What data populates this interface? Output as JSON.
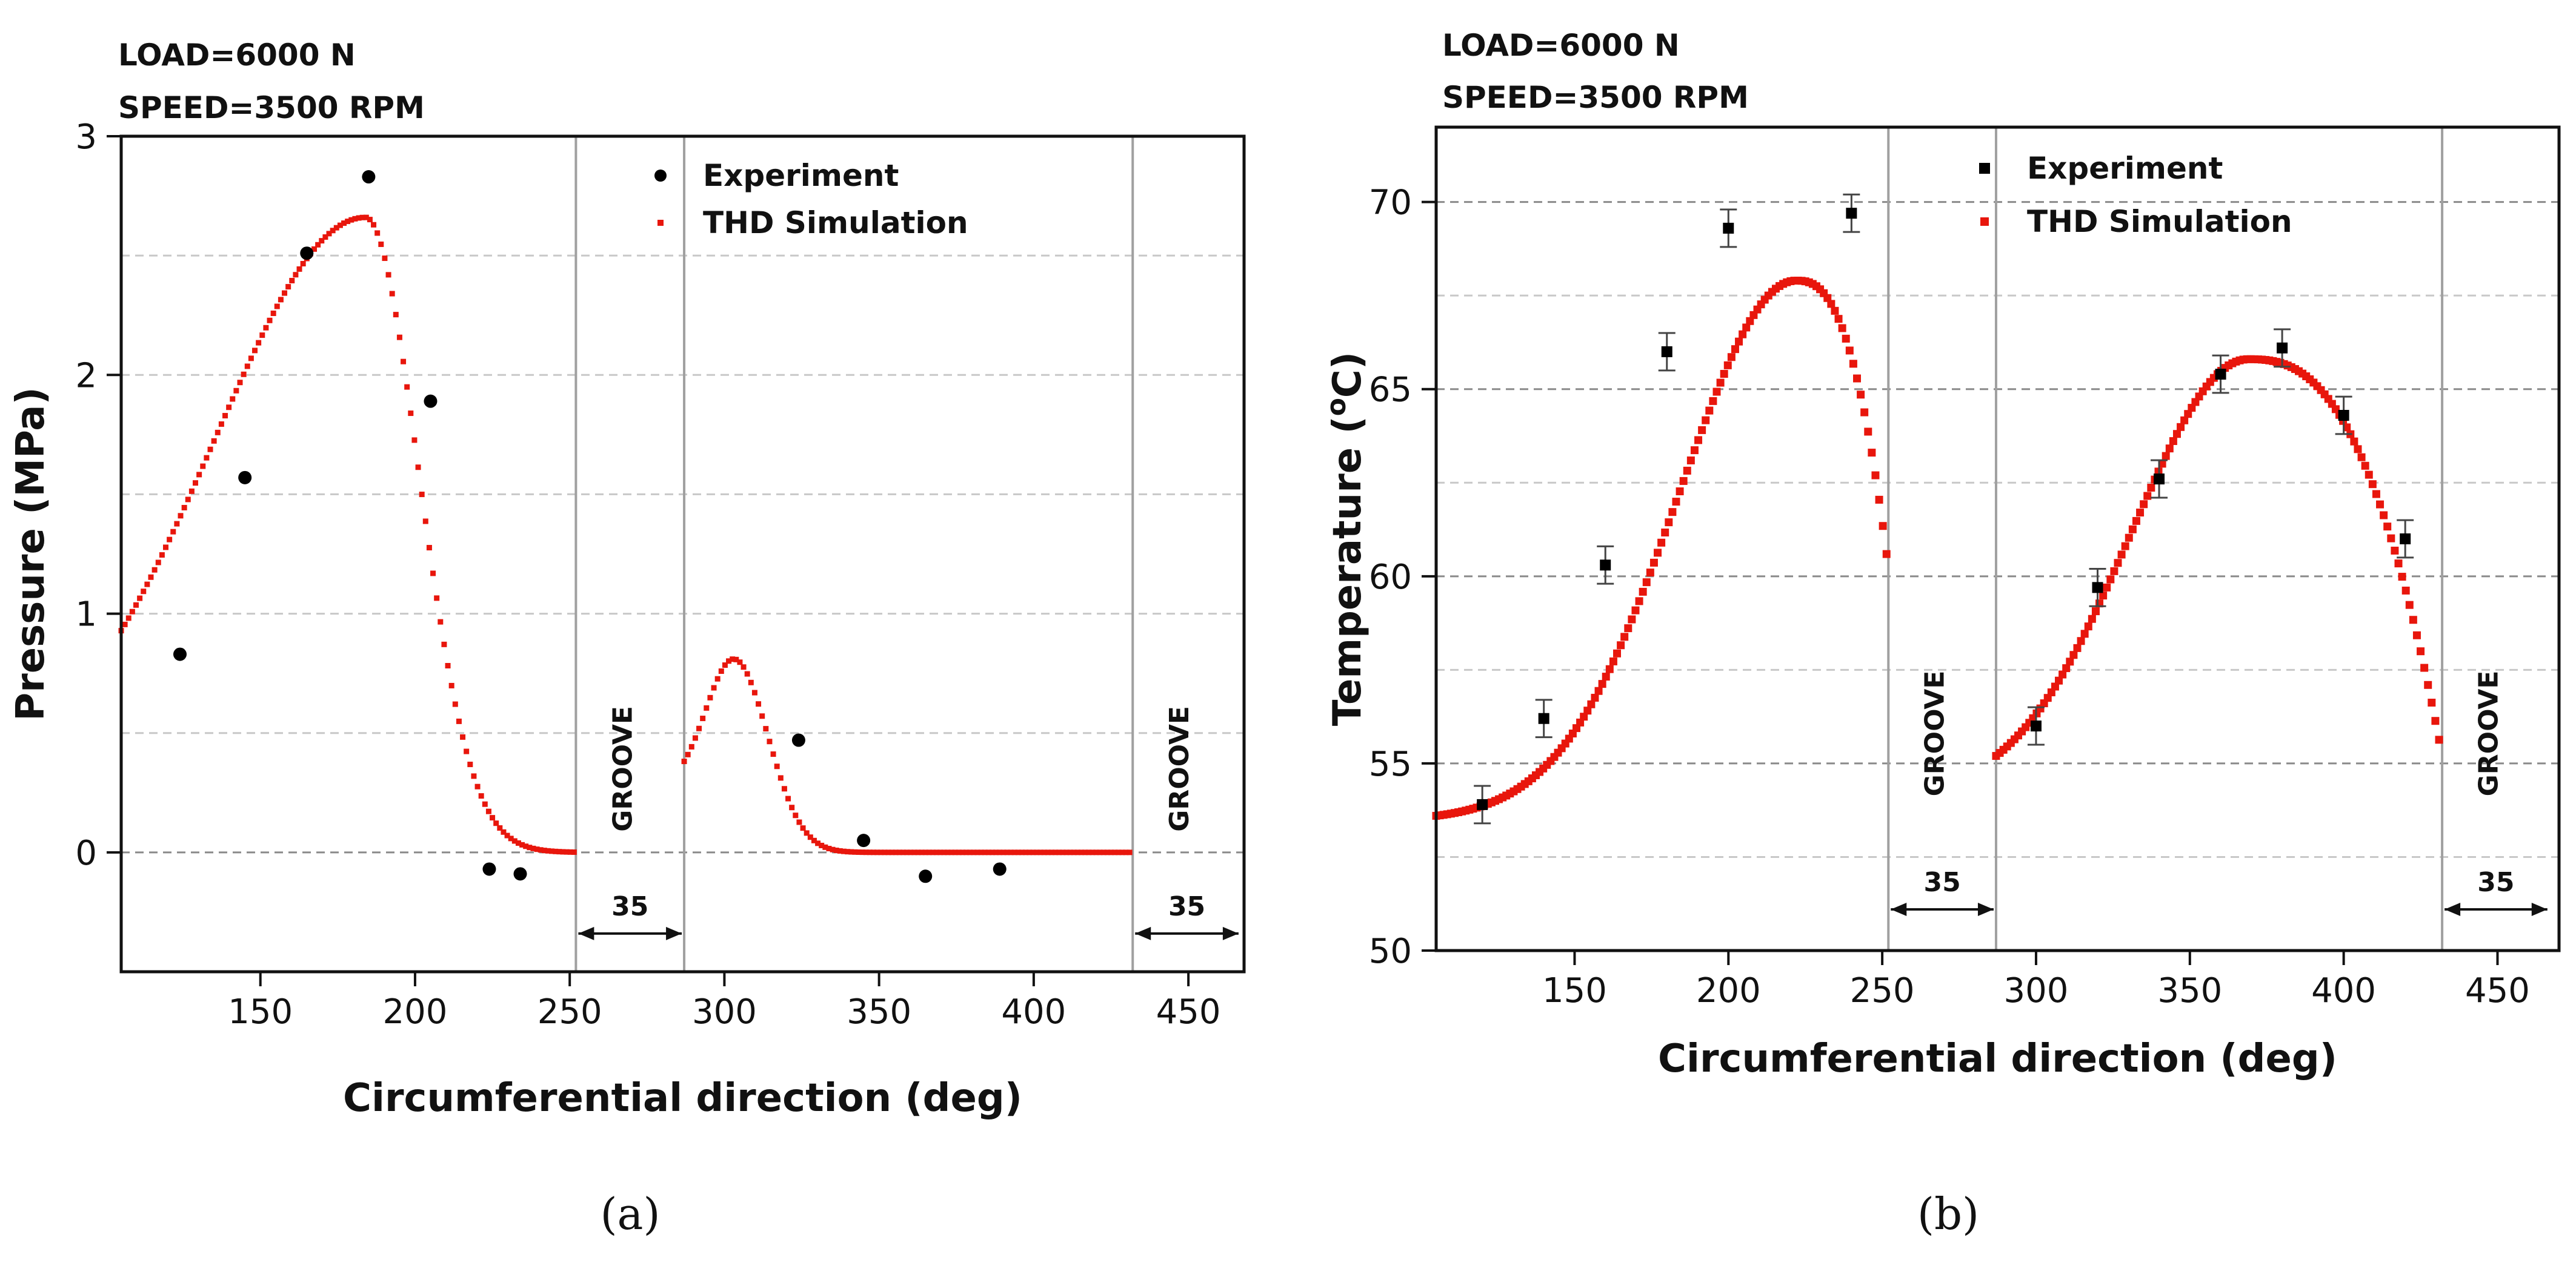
{
  "chart_data": [
    {
      "id": "a",
      "type": "scatter",
      "panel_label": "(a)",
      "condition_lines": [
        "LOAD=6000 N",
        "SPEED=3500 RPM"
      ],
      "xlabel": "Circumferential direction (deg)",
      "ylabel": "Pressure (MPa)",
      "xlim": [
        105,
        468
      ],
      "ylim": [
        -0.5,
        3
      ],
      "xticks": [
        150,
        200,
        250,
        300,
        350,
        400,
        450
      ],
      "yticks": [
        0,
        1,
        2,
        3
      ],
      "ytick_labels": [
        "0",
        "1",
        "2",
        "3"
      ],
      "grid_y": [
        -0.5,
        0,
        0.5,
        1,
        1.5,
        2,
        2.5
      ],
      "groove_lines": [
        252,
        287,
        432
      ],
      "grooves": [
        {
          "label": "GROOVE",
          "label_x": 270,
          "label_y": 0.35,
          "span": [
            252,
            287
          ],
          "span_label": "35",
          "span_y": -0.34
        },
        {
          "label": "GROOVE",
          "label_x": 450,
          "label_y": 0.35,
          "span": [
            432,
            467
          ],
          "span_label": "35",
          "span_y": -0.34
        }
      ],
      "legend": [
        "Experiment",
        "THD Simulation"
      ],
      "experiment": {
        "name": "Experiment",
        "x": [
          124,
          145,
          165,
          185,
          205,
          224,
          234,
          324,
          345,
          365,
          389
        ],
        "y": [
          0.83,
          1.57,
          2.51,
          2.83,
          1.89,
          -0.07,
          -0.09,
          0.47,
          0.05,
          -0.1,
          -0.07
        ]
      },
      "simulation": {
        "name": "THD Simulation",
        "segments": [
          {
            "range": [
              105,
              252
            ],
            "mode": "gaussian",
            "base": 0.28,
            "peak": 2.66,
            "center": 184,
            "sigma_left": 49,
            "sigma_right": 17
          },
          {
            "range": [
              287,
              432
            ],
            "mode": "gaussian",
            "base": 0.27,
            "peak": 0.81,
            "center": 303,
            "sigma_left": 9,
            "sigma_right": 11
          }
        ]
      }
    },
    {
      "id": "b",
      "type": "scatter",
      "panel_label": "(b)",
      "condition_lines": [
        "LOAD=6000 N",
        "SPEED=3500 RPM"
      ],
      "xlabel": "Circumferential direction (deg)",
      "ylabel": "Temperature (",
      "ylabel_sup": "o",
      "ylabel_end": "C)",
      "xlim": [
        105,
        470
      ],
      "ylim": [
        50,
        72
      ],
      "xticks": [
        150,
        200,
        250,
        300,
        350,
        400,
        450
      ],
      "yticks": [
        50,
        55,
        60,
        65,
        70
      ],
      "ytick_labels": [
        "50",
        "55",
        "60",
        "65",
        "70"
      ],
      "grid_y": [
        52.5,
        55,
        57.5,
        60,
        62.5,
        65,
        67.5,
        70
      ],
      "groove_lines": [
        252,
        287,
        432
      ],
      "grooves": [
        {
          "label": "GROOVE",
          "label_x": 270,
          "label_y": 55.8,
          "span": [
            252,
            287
          ],
          "span_label": "35",
          "span_y": 51.1
        },
        {
          "label": "GROOVE",
          "label_x": 450,
          "label_y": 55.8,
          "span": [
            432,
            467
          ],
          "span_label": "35",
          "span_y": 51.1
        }
      ],
      "legend": [
        "Experiment",
        "THD Simulation"
      ],
      "experiment": {
        "name": "Experiment",
        "x": [
          120,
          140,
          160,
          180,
          200,
          240,
          300,
          320,
          340,
          360,
          380,
          400,
          420
        ],
        "y": [
          53.9,
          56.2,
          60.3,
          66.0,
          69.3,
          69.7,
          56.0,
          59.7,
          62.6,
          65.4,
          66.1,
          64.3,
          61.0
        ],
        "err": [
          0.5,
          0.5,
          0.5,
          0.5,
          0.5,
          0.5,
          0.5,
          0.5,
          0.5,
          0.5,
          0.5,
          0.5,
          0.5
        ]
      },
      "simulation": {
        "name": "THD Simulation",
        "segments": [
          {
            "range": [
              105,
              252
            ],
            "mode": "rise_drop",
            "base": 53.6,
            "peak": 67.9,
            "center": 222,
            "sigma_left": 38,
            "end_value": 60.2
          },
          {
            "range": [
              287,
              432
            ],
            "mode": "rise_drop",
            "base": 55.2,
            "peak": 65.8,
            "center": 369,
            "sigma_left": 38,
            "end_value": 55.2
          }
        ]
      }
    }
  ]
}
